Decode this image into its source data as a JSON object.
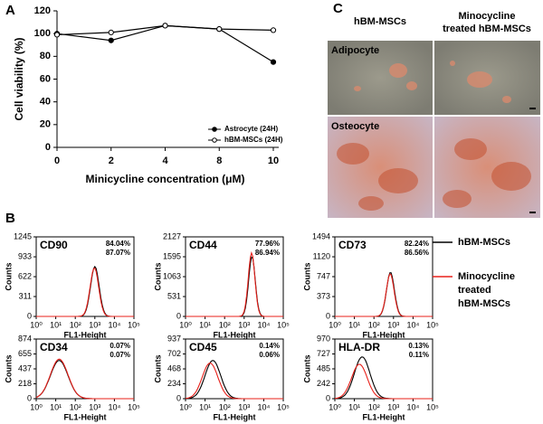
{
  "panel_labels": [
    "A",
    "B",
    "C"
  ],
  "chart_data": {
    "type": "line",
    "xlabel": "Minicycline concentration (μM)",
    "ylabel": "Cell viability (%)",
    "categories": [
      "0",
      "2",
      "4",
      "8",
      "10"
    ],
    "series": [
      {
        "name": "Astrocyte (24H)",
        "color": "#000000",
        "marker": "filled",
        "values": [
          100,
          94,
          107,
          104,
          75
        ]
      },
      {
        "name": "hBM-MSCs (24H)",
        "color": "#000000",
        "marker": "open",
        "values": [
          99,
          101,
          107,
          104,
          103
        ]
      }
    ],
    "ylim": [
      0,
      120
    ],
    "yticks": [
      0,
      20,
      40,
      60,
      80,
      100,
      120
    ],
    "legend": "lower right"
  },
  "flow": {
    "xlabel": "FL1-Height",
    "ylabel": "Counts",
    "xlim": [
      1,
      100000
    ],
    "log": true,
    "xticks": [
      {
        "value": 1,
        "label": "10⁰"
      },
      {
        "value": 10,
        "label": "10¹"
      },
      {
        "value": 100,
        "label": "10²"
      },
      {
        "value": 1000,
        "label": "10³"
      },
      {
        "value": 10000,
        "label": "10⁴"
      },
      {
        "value": 100000,
        "label": "10⁵"
      }
    ],
    "legend": [
      {
        "name": "hBM-MSCs",
        "color": "#000000"
      },
      {
        "name": [
          "Minocycline",
          "treated",
          "hBM-MSCs"
        ],
        "color": "#e8201a"
      }
    ],
    "panels": [
      {
        "name": "CD90",
        "percents": [
          "84.04%",
          "87.07%"
        ],
        "ylim": [
          0,
          1245
        ],
        "yticks": [
          0,
          311,
          622,
          933,
          1245
        ],
        "curves": [
          {
            "peak_x": 1000,
            "peak_count": 780,
            "spread": 0.22
          },
          {
            "peak_x": 950,
            "peak_count": 760,
            "spread": 0.22
          }
        ]
      },
      {
        "name": "CD44",
        "percents": [
          "77.96%",
          "86.94%"
        ],
        "ylim": [
          0,
          2127
        ],
        "yticks": [
          0,
          531,
          1063,
          1595,
          2127
        ],
        "curves": [
          {
            "peak_x": 2500,
            "peak_count": 1600,
            "spread": 0.17
          },
          {
            "peak_x": 2400,
            "peak_count": 1700,
            "spread": 0.17
          }
        ]
      },
      {
        "name": "CD73",
        "percents": [
          "82.24%",
          "86.56%"
        ],
        "ylim": [
          0,
          1494
        ],
        "yticks": [
          0,
          373,
          747,
          1120,
          1494
        ],
        "curves": [
          {
            "peak_x": 700,
            "peak_count": 830,
            "spread": 0.2
          },
          {
            "peak_x": 680,
            "peak_count": 800,
            "spread": 0.2
          }
        ]
      },
      {
        "name": "CD34",
        "percents": [
          "0.07%",
          "0.07%"
        ],
        "ylim": [
          0,
          874
        ],
        "yticks": [
          0,
          218,
          437,
          655,
          874
        ],
        "curves": [
          {
            "peak_x": 15,
            "peak_count": 560,
            "spread": 0.45
          },
          {
            "peak_x": 15,
            "peak_count": 580,
            "spread": 0.45
          }
        ]
      },
      {
        "name": "CD45",
        "percents": [
          "0.14%",
          "0.06%"
        ],
        "ylim": [
          0,
          937
        ],
        "yticks": [
          0,
          234,
          468,
          702,
          937
        ],
        "curves": [
          {
            "peak_x": 25,
            "peak_count": 600,
            "spread": 0.4
          },
          {
            "peak_x": 18,
            "peak_count": 560,
            "spread": 0.4
          }
        ]
      },
      {
        "name": "HLA-DR",
        "percents": [
          "0.13%",
          "0.11%"
        ],
        "ylim": [
          0,
          970
        ],
        "yticks": [
          0,
          242,
          485,
          727,
          970
        ],
        "curves": [
          {
            "peak_x": 25,
            "peak_count": 680,
            "spread": 0.4
          },
          {
            "peak_x": 18,
            "peak_count": 560,
            "spread": 0.4
          }
        ]
      }
    ]
  },
  "photos": {
    "columns": [
      "hBM-MSCs",
      [
        "Minocycline",
        "treated hBM-MSCs"
      ]
    ],
    "rows": [
      "Adipocyte",
      "Osteocyte"
    ]
  }
}
